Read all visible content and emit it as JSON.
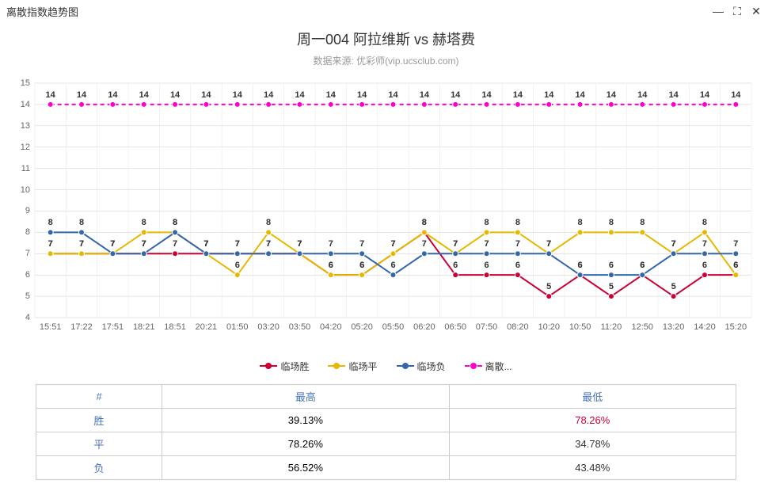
{
  "window": {
    "title": "离散指数趋势图",
    "minimize": "—",
    "maximize": "⛶",
    "close": "✕"
  },
  "chart": {
    "title": "周一004 阿拉维斯 vs 赫塔费",
    "subtitle": "数据来源: 优彩师(vip.ucsclub.com)",
    "ylim": [
      4,
      15
    ],
    "yticks": [
      4,
      5,
      6,
      7,
      8,
      9,
      10,
      11,
      12,
      13,
      14,
      15
    ],
    "xlabels": [
      "15:51",
      "17:22",
      "17:51",
      "18:21",
      "18:51",
      "20:21",
      "01:50",
      "03:20",
      "03:50",
      "04:20",
      "05:20",
      "05:50",
      "06:20",
      "06:50",
      "07:50",
      "08:20",
      "10:20",
      "10:50",
      "11:20",
      "12:50",
      "13:20",
      "14:20",
      "15:20"
    ],
    "grid_color": "#e6e6e6",
    "split_color": "#cccccc",
    "bg": "#ffffff",
    "series": [
      {
        "name": "临场胜",
        "color": "#cc0033",
        "style": "solid",
        "show_labels": true,
        "data": [
          7,
          7,
          7,
          7,
          7,
          7,
          7,
          7,
          7,
          6,
          6,
          7,
          8,
          6,
          6,
          6,
          5,
          6,
          5,
          6,
          5,
          6,
          6
        ]
      },
      {
        "name": "临场平",
        "color": "#e6b800",
        "style": "solid",
        "show_labels": true,
        "data": [
          7,
          7,
          7,
          8,
          8,
          7,
          6,
          8,
          7,
          6,
          6,
          7,
          8,
          7,
          8,
          8,
          7,
          8,
          8,
          8,
          7,
          8,
          6
        ]
      },
      {
        "name": "临场负",
        "color": "#3366aa",
        "style": "solid",
        "show_labels": true,
        "data": [
          8,
          8,
          7,
          7,
          8,
          7,
          7,
          7,
          7,
          7,
          7,
          6,
          7,
          7,
          7,
          7,
          7,
          6,
          6,
          6,
          7,
          7,
          7
        ]
      },
      {
        "name": "离散...",
        "color": "#ff00cc",
        "style": "dashed",
        "show_labels": true,
        "data": [
          14,
          14,
          14,
          14,
          14,
          14,
          14,
          14,
          14,
          14,
          14,
          14,
          14,
          14,
          14,
          14,
          14,
          14,
          14,
          14,
          14,
          14,
          14
        ]
      }
    ]
  },
  "legend": {
    "items": [
      "临场胜",
      "临场平",
      "临场负",
      "离散..."
    ]
  },
  "table": {
    "headers": [
      "#",
      "最高",
      "最低"
    ],
    "rows": [
      {
        "label": "胜",
        "high": "39.13%",
        "low": "78.26%",
        "low_color": "#cc0033"
      },
      {
        "label": "平",
        "high": "78.26%",
        "low": "34.78%",
        "low_color": "#333333"
      },
      {
        "label": "负",
        "high": "56.52%",
        "low": "43.48%",
        "low_color": "#333333"
      }
    ]
  }
}
